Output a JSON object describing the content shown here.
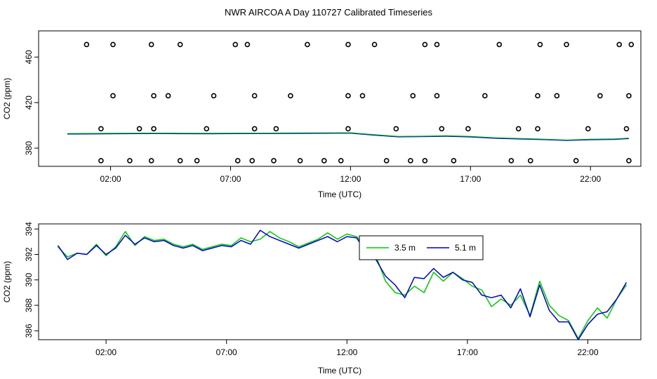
{
  "page": {
    "title": "NWR AIRCOA A  Day 110727  Calibrated Timeseries"
  },
  "chart_data": [
    {
      "type": "scatter",
      "title": "NWR AIRCOA A  Day 110727  Calibrated Timeseries",
      "xlabel": "Time (UTC)",
      "ylabel": "CO2 (ppm)",
      "xlim": [
        -1.0,
        24.1
      ],
      "ylim": [
        364,
        483
      ],
      "x_ticks": [
        2,
        7,
        12,
        17,
        22
      ],
      "x_tick_labels": [
        "02:00",
        "07:00",
        "12:00",
        "17:00",
        "22:00"
      ],
      "y_ticks": [
        380,
        420,
        460
      ],
      "y_tick_labels": [
        "380",
        "420",
        "460"
      ],
      "grid": false,
      "colors": {
        "points": "#000000",
        "green": "#00cc00",
        "blue": "#0000cc"
      },
      "points": [
        [
          1.0,
          471
        ],
        [
          1.6,
          397
        ],
        [
          1.6,
          369
        ],
        [
          2.1,
          426
        ],
        [
          2.8,
          369
        ],
        [
          3.2,
          397
        ],
        [
          3.7,
          369
        ],
        [
          3.8,
          397
        ],
        [
          3.8,
          426
        ],
        [
          4.4,
          426
        ],
        [
          4.9,
          369
        ],
        [
          5.6,
          369
        ],
        [
          6.0,
          397
        ],
        [
          6.3,
          426
        ],
        [
          7.3,
          369
        ],
        [
          7.9,
          369
        ],
        [
          8.0,
          397
        ],
        [
          8.0,
          426
        ],
        [
          8.8,
          369
        ],
        [
          8.9,
          397
        ],
        [
          9.5,
          426
        ],
        [
          9.9,
          369
        ],
        [
          10.9,
          369
        ],
        [
          11.6,
          369
        ],
        [
          11.9,
          397
        ],
        [
          11.9,
          426
        ],
        [
          12.5,
          426
        ],
        [
          13.5,
          369
        ],
        [
          13.9,
          397
        ],
        [
          14.5,
          369
        ],
        [
          14.6,
          426
        ],
        [
          15.1,
          369
        ],
        [
          15.6,
          426
        ],
        [
          15.8,
          397
        ],
        [
          16.3,
          369
        ],
        [
          16.9,
          397
        ],
        [
          17.6,
          426
        ],
        [
          18.7,
          369
        ],
        [
          19.0,
          397
        ],
        [
          19.5,
          369
        ],
        [
          19.8,
          397
        ],
        [
          19.8,
          426
        ],
        [
          20.6,
          426
        ],
        [
          21.4,
          369
        ],
        [
          21.9,
          397
        ],
        [
          22.4,
          426
        ],
        [
          23.5,
          397
        ],
        [
          23.6,
          369
        ],
        [
          23.6,
          426
        ],
        [
          2.1,
          471
        ],
        [
          3.7,
          471
        ],
        [
          4.9,
          471
        ],
        [
          7.2,
          471
        ],
        [
          7.7,
          471
        ],
        [
          10.2,
          471
        ],
        [
          11.9,
          471
        ],
        [
          13.0,
          471
        ],
        [
          15.1,
          471
        ],
        [
          15.6,
          471
        ],
        [
          18.2,
          471
        ],
        [
          19.9,
          471
        ],
        [
          21.0,
          471
        ],
        [
          23.2,
          471
        ],
        [
          23.7,
          471
        ]
      ],
      "series": [
        {
          "name": "",
          "x": [
            0.2,
            2,
            4,
            6,
            8,
            10,
            12,
            13,
            14,
            15,
            16,
            17,
            18,
            19,
            20,
            21,
            22,
            23,
            23.6
          ],
          "y": [
            392.5,
            392.7,
            392.9,
            392.7,
            392.9,
            393.0,
            393.2,
            391.5,
            390.0,
            390.2,
            390.6,
            389.9,
            388.8,
            388.2,
            387.6,
            386.8,
            387.5,
            387.8,
            388.5
          ]
        }
      ]
    },
    {
      "type": "line",
      "title": "",
      "xlabel": "Time (UTC)",
      "ylabel": "CO2 (ppm)",
      "xlim": [
        -0.8,
        24.2
      ],
      "ylim": [
        385.3,
        394.4
      ],
      "x_ticks": [
        2,
        7,
        12,
        17,
        22
      ],
      "x_tick_labels": [
        "02:00",
        "07:00",
        "12:00",
        "17:00",
        "22:00"
      ],
      "y_ticks": [
        386,
        388,
        390,
        392,
        394
      ],
      "y_tick_labels": [
        "386",
        "388",
        "390",
        "392",
        "394"
      ],
      "grid": false,
      "legend": {
        "placement": "top-center",
        "entries": [
          "3.5 m",
          "5.1 m"
        ]
      },
      "series": [
        {
          "name": "3.5 m",
          "color": "#00cc00",
          "x": [
            0.0,
            0.4,
            0.8,
            1.2,
            1.6,
            2.0,
            2.4,
            2.8,
            3.2,
            3.6,
            4.0,
            4.4,
            4.8,
            5.2,
            5.6,
            6.0,
            6.4,
            6.8,
            7.2,
            7.6,
            8.0,
            8.4,
            8.8,
            9.2,
            9.6,
            10.0,
            10.4,
            10.8,
            11.2,
            11.6,
            12.0,
            12.4,
            12.8,
            13.2,
            13.6,
            14.0,
            14.4,
            14.8,
            15.2,
            15.6,
            16.0,
            16.4,
            16.8,
            17.2,
            17.6,
            18.0,
            18.4,
            18.8,
            19.2,
            19.6,
            20.0,
            20.4,
            20.8,
            21.2,
            21.6,
            22.0,
            22.4,
            22.8,
            23.2,
            23.6
          ],
          "y": [
            392.6,
            391.8,
            392.1,
            392.0,
            392.8,
            391.9,
            392.6,
            393.8,
            392.7,
            393.4,
            393.1,
            393.2,
            392.8,
            392.6,
            392.8,
            392.4,
            392.6,
            392.8,
            392.7,
            393.3,
            393.0,
            393.2,
            393.8,
            393.3,
            393.0,
            392.6,
            392.9,
            393.2,
            393.7,
            393.2,
            393.6,
            393.4,
            392.6,
            391.9,
            389.9,
            389.0,
            388.8,
            389.5,
            389.0,
            390.6,
            389.9,
            390.6,
            390.1,
            389.5,
            389.2,
            387.9,
            388.5,
            388.0,
            388.8,
            387.2,
            389.9,
            388.0,
            387.2,
            386.8,
            385.4,
            386.8,
            387.8,
            387.0,
            388.5,
            389.6
          ]
        },
        {
          "name": "5.1 m",
          "color": "#0000cc",
          "x": [
            0.0,
            0.4,
            0.8,
            1.2,
            1.6,
            2.0,
            2.4,
            2.8,
            3.2,
            3.6,
            4.0,
            4.4,
            4.8,
            5.2,
            5.6,
            6.0,
            6.4,
            6.8,
            7.2,
            7.6,
            8.0,
            8.4,
            8.8,
            9.2,
            9.6,
            10.0,
            10.4,
            10.8,
            11.2,
            11.6,
            12.0,
            12.4,
            12.8,
            13.2,
            13.6,
            14.0,
            14.4,
            14.8,
            15.2,
            15.6,
            16.0,
            16.4,
            16.8,
            17.2,
            17.6,
            18.0,
            18.4,
            18.8,
            19.2,
            19.6,
            20.0,
            20.4,
            20.8,
            21.2,
            21.6,
            22.0,
            22.4,
            22.8,
            23.2,
            23.6
          ],
          "y": [
            392.7,
            391.6,
            392.1,
            392.0,
            392.7,
            392.0,
            392.5,
            393.5,
            392.8,
            393.3,
            393.0,
            393.1,
            392.7,
            392.5,
            392.7,
            392.3,
            392.5,
            392.7,
            392.6,
            393.1,
            392.8,
            393.9,
            393.4,
            393.1,
            392.8,
            392.5,
            392.8,
            393.1,
            393.4,
            393.0,
            393.4,
            393.3,
            392.2,
            391.6,
            390.3,
            389.6,
            388.6,
            390.2,
            390.1,
            390.9,
            390.2,
            390.6,
            390.0,
            389.8,
            388.8,
            388.6,
            388.8,
            387.8,
            389.3,
            387.1,
            389.6,
            387.6,
            386.7,
            386.7,
            385.3,
            386.5,
            387.3,
            387.5,
            388.5,
            389.8
          ]
        }
      ]
    }
  ]
}
